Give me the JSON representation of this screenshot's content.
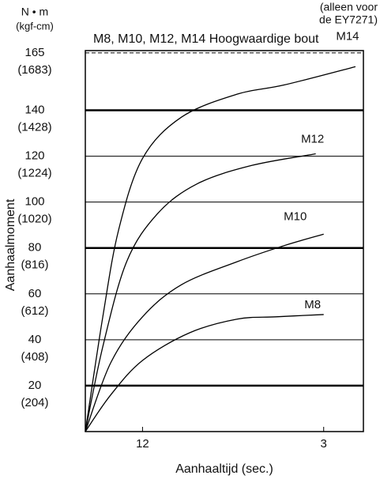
{
  "chart_data": {
    "type": "line",
    "title": "M8, M10, M12, M14 Hoogwaardige bout",
    "note": [
      "(alleen voor",
      "de EY7271)"
    ],
    "y_unit": [
      "N • m",
      "(kgf-cm)"
    ],
    "x_label": "Aanhaaltijd (sec.)",
    "y_label": "Aanhaalmoment",
    "xlim": [
      0,
      3.5
    ],
    "xticks": [
      {
        "value": 0.72,
        "label": "12"
      },
      3
    ],
    "ylim": [
      0,
      166
    ],
    "yticks": [
      20,
      40,
      60,
      80,
      100,
      120,
      140,
      165
    ],
    "ytick_secondary_labels": [
      "(204)",
      "(408)",
      "(612)",
      "(816)",
      "(1020)",
      "(1224)",
      "(1428)",
      "(1683)"
    ],
    "major_yticks": [
      20,
      80,
      140
    ],
    "dashed_ytick": 165,
    "grid": true,
    "series": [
      {
        "name": "M14",
        "color": "#000000",
        "x": [
          0,
          0.22,
          0.42,
          0.72,
          1.21,
          1.91,
          2.5,
          3.4
        ],
        "values": [
          0,
          50,
          88,
          119,
          137,
          147,
          151,
          159
        ]
      },
      {
        "name": "M12",
        "color": "#000000",
        "x": [
          0,
          0.22,
          0.52,
          0.91,
          1.41,
          2.1,
          2.9
        ],
        "values": [
          0,
          37,
          74,
          95,
          108,
          116,
          121
        ]
      },
      {
        "name": "M10",
        "color": "#000000",
        "x": [
          0,
          0.32,
          0.72,
          1.21,
          1.91,
          2.5,
          3.0
        ],
        "values": [
          0,
          30,
          50,
          64,
          74,
          81,
          86
        ]
      },
      {
        "name": "M8",
        "color": "#000000",
        "x": [
          0,
          0.32,
          0.72,
          1.31,
          1.91,
          2.4,
          3.0
        ],
        "values": [
          0,
          16,
          31,
          43,
          49,
          50,
          51
        ]
      }
    ]
  }
}
